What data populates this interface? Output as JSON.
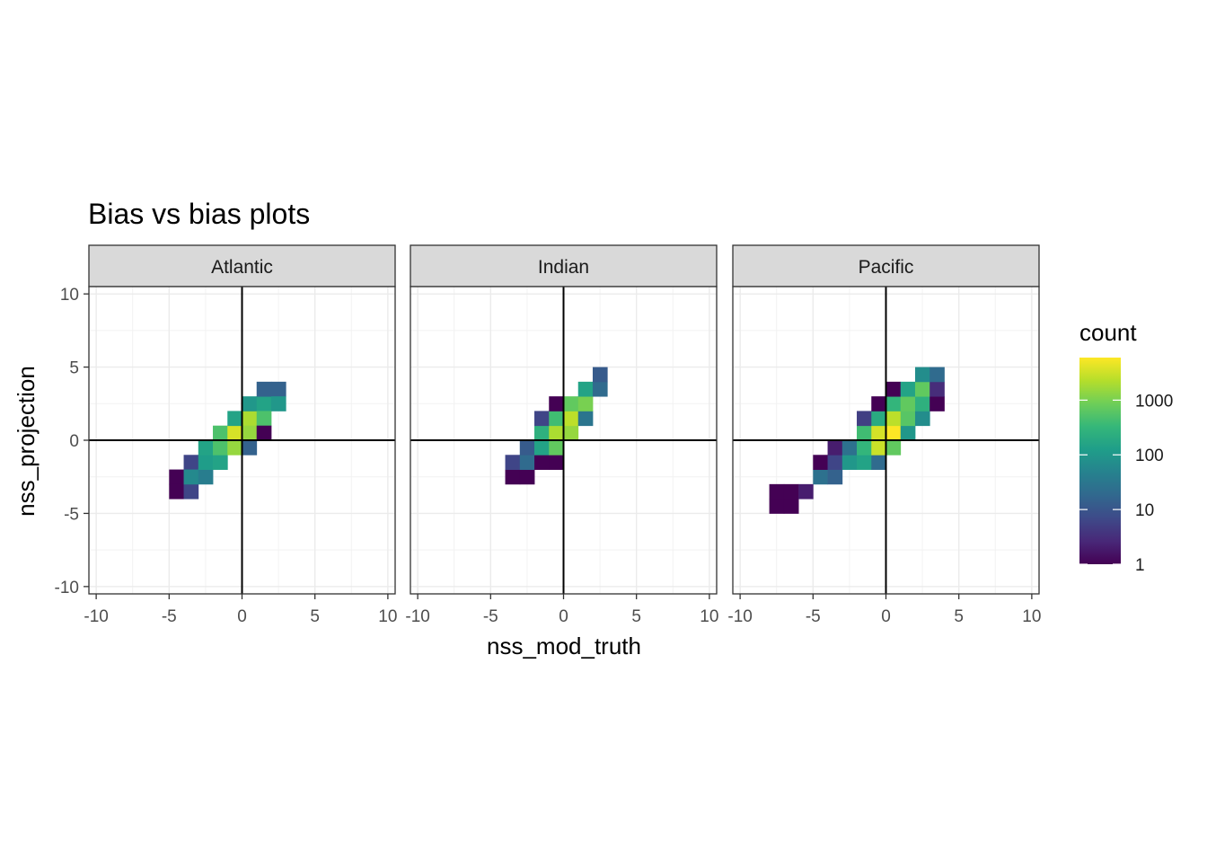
{
  "chart_data": {
    "type": "heatmap",
    "title": "Bias vs bias plots",
    "xlabel": "nss_mod_truth",
    "ylabel": "nss_projection",
    "xlim": [
      -10,
      10
    ],
    "ylim": [
      -10,
      10
    ],
    "x_ticks": [
      -10,
      -5,
      0,
      5,
      10
    ],
    "y_ticks": [
      -10,
      -5,
      0,
      5,
      10
    ],
    "x_tick_labels": [
      "-10",
      "-5",
      "0",
      "5",
      "10"
    ],
    "y_tick_labels": [
      "-10",
      "-5",
      "0",
      "5",
      "10"
    ],
    "bin_width": 1.0,
    "grid": true,
    "reference_lines": {
      "x": 0,
      "y": 0
    },
    "color_scale": {
      "name": "viridis",
      "transform": "log10",
      "range": [
        1,
        6000
      ],
      "colors": [
        "#440154",
        "#482878",
        "#3e4a89",
        "#31688e",
        "#26828e",
        "#1f9e89",
        "#35b779",
        "#6ece58",
        "#b5de2b",
        "#fde725"
      ]
    },
    "legend": {
      "title": "count",
      "position": "right",
      "breaks": [
        1,
        10,
        100,
        1000
      ],
      "labels": [
        "1",
        "10",
        "100",
        "1000"
      ]
    },
    "panels": [
      {
        "name": "Atlantic",
        "cells": [
          {
            "x": -4.5,
            "y": -2.5,
            "count": 1
          },
          {
            "x": -4.5,
            "y": -3.5,
            "count": 1
          },
          {
            "x": -3.5,
            "y": -3.5,
            "count": 6
          },
          {
            "x": -3.5,
            "y": -1.5,
            "count": 6
          },
          {
            "x": -3.5,
            "y": -2.5,
            "count": 60
          },
          {
            "x": -2.5,
            "y": -2.5,
            "count": 40
          },
          {
            "x": -2.5,
            "y": -1.5,
            "count": 120
          },
          {
            "x": -2.5,
            "y": -0.5,
            "count": 150
          },
          {
            "x": -1.5,
            "y": -1.5,
            "count": 150
          },
          {
            "x": -1.5,
            "y": -0.5,
            "count": 500
          },
          {
            "x": -1.5,
            "y": 0.5,
            "count": 500
          },
          {
            "x": -0.5,
            "y": -0.5,
            "count": 1500
          },
          {
            "x": -0.5,
            "y": 0.5,
            "count": 3500
          },
          {
            "x": -0.5,
            "y": 1.5,
            "count": 150
          },
          {
            "x": 0.5,
            "y": 1.5,
            "count": 2000
          },
          {
            "x": 0.5,
            "y": 0.5,
            "count": 1500
          },
          {
            "x": 0.5,
            "y": -0.5,
            "count": 15
          },
          {
            "x": 0.5,
            "y": 2.5,
            "count": 100
          },
          {
            "x": 1.5,
            "y": 2.5,
            "count": 150
          },
          {
            "x": 1.5,
            "y": 1.5,
            "count": 500
          },
          {
            "x": 1.5,
            "y": 0.5,
            "count": 1
          },
          {
            "x": 1.5,
            "y": 3.5,
            "count": 15
          },
          {
            "x": 2.5,
            "y": 3.5,
            "count": 15
          },
          {
            "x": 2.5,
            "y": 2.5,
            "count": 100
          }
        ]
      },
      {
        "name": "Indian",
        "cells": [
          {
            "x": -3.5,
            "y": -2.5,
            "count": 1
          },
          {
            "x": -2.5,
            "y": -2.5,
            "count": 1
          },
          {
            "x": -3.5,
            "y": -1.5,
            "count": 6
          },
          {
            "x": -2.5,
            "y": -1.5,
            "count": 20
          },
          {
            "x": -1.5,
            "y": -1.5,
            "count": 1
          },
          {
            "x": -0.5,
            "y": -1.5,
            "count": 1
          },
          {
            "x": -2.5,
            "y": -0.5,
            "count": 12
          },
          {
            "x": -1.5,
            "y": -0.5,
            "count": 150
          },
          {
            "x": -1.5,
            "y": 0.5,
            "count": 250
          },
          {
            "x": -0.5,
            "y": 0.5,
            "count": 2000
          },
          {
            "x": -0.5,
            "y": -0.5,
            "count": 700
          },
          {
            "x": 0.5,
            "y": 0.5,
            "count": 1500
          },
          {
            "x": -1.5,
            "y": 1.5,
            "count": 6
          },
          {
            "x": -0.5,
            "y": 1.5,
            "count": 400
          },
          {
            "x": 0.5,
            "y": 1.5,
            "count": 2500
          },
          {
            "x": 1.5,
            "y": 1.5,
            "count": 30
          },
          {
            "x": -0.5,
            "y": 2.5,
            "count": 1
          },
          {
            "x": 0.5,
            "y": 2.5,
            "count": 700
          },
          {
            "x": 1.5,
            "y": 2.5,
            "count": 1000
          },
          {
            "x": 1.5,
            "y": 3.5,
            "count": 150
          },
          {
            "x": 2.5,
            "y": 3.5,
            "count": 20
          },
          {
            "x": 2.5,
            "y": 4.5,
            "count": 12
          }
        ]
      },
      {
        "name": "Pacific",
        "cells": [
          {
            "x": -7.5,
            "y": -4.5,
            "count": 1
          },
          {
            "x": -6.5,
            "y": -4.5,
            "count": 1
          },
          {
            "x": -7.5,
            "y": -3.5,
            "count": 1
          },
          {
            "x": -6.5,
            "y": -3.5,
            "count": 1
          },
          {
            "x": -5.5,
            "y": -3.5,
            "count": 2
          },
          {
            "x": -4.5,
            "y": -2.5,
            "count": 25
          },
          {
            "x": -3.5,
            "y": -2.5,
            "count": 15
          },
          {
            "x": -4.5,
            "y": -1.5,
            "count": 1
          },
          {
            "x": -3.5,
            "y": -1.5,
            "count": 6
          },
          {
            "x": -2.5,
            "y": -1.5,
            "count": 100
          },
          {
            "x": -1.5,
            "y": -1.5,
            "count": 150
          },
          {
            "x": -0.5,
            "y": -1.5,
            "count": 20
          },
          {
            "x": -3.5,
            "y": -0.5,
            "count": 2
          },
          {
            "x": -2.5,
            "y": -0.5,
            "count": 25
          },
          {
            "x": -1.5,
            "y": -0.5,
            "count": 300
          },
          {
            "x": -0.5,
            "y": -0.5,
            "count": 3000
          },
          {
            "x": 0.5,
            "y": -0.5,
            "count": 700
          },
          {
            "x": -1.5,
            "y": 0.5,
            "count": 400
          },
          {
            "x": -0.5,
            "y": 0.5,
            "count": 3500
          },
          {
            "x": 0.5,
            "y": 0.5,
            "count": 6000
          },
          {
            "x": 1.5,
            "y": 0.5,
            "count": 100
          },
          {
            "x": -1.5,
            "y": 1.5,
            "count": 5
          },
          {
            "x": -0.5,
            "y": 1.5,
            "count": 200
          },
          {
            "x": 0.5,
            "y": 1.5,
            "count": 2500
          },
          {
            "x": 1.5,
            "y": 1.5,
            "count": 600
          },
          {
            "x": 2.5,
            "y": 1.5,
            "count": 70
          },
          {
            "x": -0.5,
            "y": 2.5,
            "count": 1
          },
          {
            "x": 0.5,
            "y": 2.5,
            "count": 300
          },
          {
            "x": 1.5,
            "y": 2.5,
            "count": 700
          },
          {
            "x": 2.5,
            "y": 2.5,
            "count": 250
          },
          {
            "x": 3.5,
            "y": 2.5,
            "count": 1
          },
          {
            "x": 0.5,
            "y": 3.5,
            "count": 1
          },
          {
            "x": 1.5,
            "y": 3.5,
            "count": 150
          },
          {
            "x": 2.5,
            "y": 3.5,
            "count": 700
          },
          {
            "x": 3.5,
            "y": 3.5,
            "count": 3
          },
          {
            "x": 2.5,
            "y": 4.5,
            "count": 70
          },
          {
            "x": 3.5,
            "y": 4.5,
            "count": 20
          }
        ]
      }
    ]
  }
}
